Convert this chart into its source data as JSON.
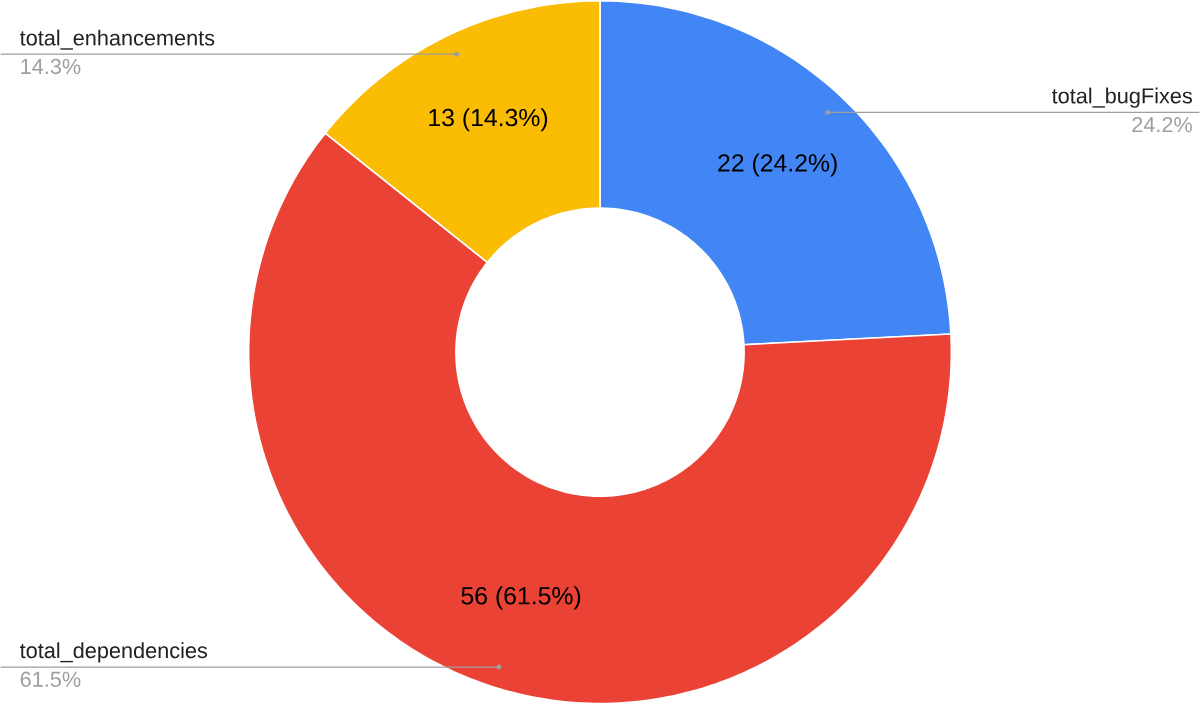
{
  "chart_data": {
    "type": "donut",
    "categories": [
      "total_bugFixes",
      "total_dependencies",
      "total_enhancements"
    ],
    "values": [
      22,
      56,
      13
    ],
    "colors": [
      "#4285f4",
      "#ea4335",
      "#fbbc04"
    ],
    "value_labels": [
      "22 (24.2%)",
      "56 (61.5%)",
      "13 (14.3%)"
    ],
    "annotations": [
      "24.2%",
      "61.5%",
      "14.3%"
    ]
  }
}
